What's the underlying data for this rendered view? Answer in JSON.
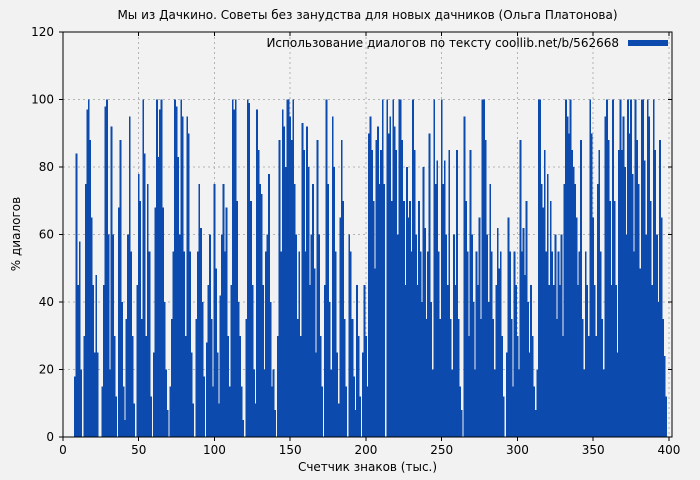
{
  "chart_data": {
    "type": "bar",
    "title": "Мы из Дачкино. Советы без занудства для новых дачников (Ольга Платонова)",
    "legend": "Использование диалогов по тексту coollib.net/b/562668",
    "xlabel": "Счетчик знаков (тыс.)",
    "ylabel": "% диалогов",
    "xlim": [
      0,
      402
    ],
    "ylim": [
      0,
      120
    ],
    "x_ticks": [
      0,
      50,
      100,
      150,
      200,
      250,
      300,
      350,
      400
    ],
    "y_ticks": [
      0,
      20,
      40,
      60,
      80,
      100,
      120
    ],
    "grid": true,
    "legend_position": "top-right",
    "bar_color": "#0c4aae",
    "colors": {
      "background": "#f2f2f2",
      "grid": "#b4b4b4",
      "axis": "#000000",
      "text": "#000000"
    },
    "x_start": 8,
    "x_step": 1,
    "values": [
      18,
      84,
      45,
      58,
      20,
      0,
      30,
      75,
      97,
      100,
      88,
      65,
      45,
      25,
      48,
      25,
      0,
      0,
      15,
      45,
      98,
      100,
      60,
      20,
      92,
      60,
      30,
      12,
      0,
      68,
      88,
      40,
      15,
      5,
      35,
      60,
      95,
      55,
      30,
      10,
      0,
      45,
      78,
      70,
      35,
      100,
      84,
      30,
      75,
      55,
      12,
      0,
      25,
      68,
      100,
      83,
      97,
      100,
      68,
      40,
      20,
      8,
      0,
      15,
      35,
      55,
      100,
      98,
      83,
      60,
      100,
      95,
      55,
      30,
      95,
      90,
      55,
      25,
      10,
      0,
      35,
      55,
      75,
      62,
      40,
      18,
      0,
      28,
      45,
      60,
      35,
      15,
      75,
      50,
      25,
      10,
      42,
      60,
      75,
      55,
      68,
      30,
      15,
      45,
      100,
      97,
      100,
      70,
      40,
      30,
      15,
      5,
      0,
      35,
      100,
      99,
      70,
      45,
      20,
      10,
      97,
      85,
      75,
      72,
      45,
      20,
      55,
      60,
      78,
      40,
      15,
      20,
      8,
      0,
      30,
      88,
      55,
      97,
      92,
      80,
      100,
      100,
      95,
      88,
      100,
      75,
      60,
      35,
      55,
      30,
      93,
      85,
      55,
      92,
      80,
      45,
      60,
      75,
      50,
      25,
      88,
      60,
      30,
      15,
      0,
      45,
      100,
      75,
      40,
      20,
      95,
      80,
      55,
      25,
      10,
      65,
      88,
      70,
      35,
      15,
      0,
      60,
      55,
      35,
      18,
      8,
      45,
      30,
      12,
      0,
      25,
      45,
      30,
      15,
      90,
      95,
      85,
      70,
      50,
      88,
      92,
      75,
      85,
      100,
      75,
      0,
      100,
      90,
      95,
      70,
      100,
      92,
      85,
      60,
      100,
      100,
      88,
      70,
      45,
      80,
      65,
      70,
      55,
      100,
      85,
      60,
      45,
      70,
      55,
      40,
      80,
      62,
      35,
      55,
      90,
      40,
      20,
      100,
      75,
      82,
      55,
      35,
      100,
      75,
      82,
      60,
      45,
      85,
      35,
      20,
      60,
      45,
      85,
      35,
      15,
      8,
      0,
      95,
      70,
      55,
      30,
      85,
      60,
      40,
      20,
      55,
      45,
      65,
      35,
      100,
      100,
      88,
      60,
      40,
      75,
      55,
      35,
      20,
      45,
      62,
      50,
      55,
      30,
      12,
      0,
      25,
      65,
      55,
      35,
      15,
      55,
      45,
      30,
      20,
      88,
      55,
      62,
      48,
      70,
      40,
      25,
      45,
      30,
      15,
      8,
      20,
      100,
      100,
      75,
      68,
      85,
      55,
      78,
      45,
      70,
      55,
      45,
      60,
      35,
      55,
      45,
      60,
      30,
      75,
      100,
      95,
      90,
      100,
      85,
      80,
      75,
      65,
      45,
      55,
      88,
      35,
      20,
      55,
      45,
      30,
      100,
      90,
      65,
      45,
      30,
      75,
      85,
      55,
      35,
      20,
      95,
      100,
      88,
      70,
      45,
      100,
      70,
      45,
      25,
      85,
      100,
      85,
      95,
      80,
      60,
      100,
      90,
      100,
      78,
      55,
      100,
      88,
      75,
      50,
      100,
      100,
      82,
      60,
      100,
      95,
      70,
      45,
      100,
      85,
      60,
      40,
      88,
      65,
      35,
      24,
      12
    ]
  }
}
